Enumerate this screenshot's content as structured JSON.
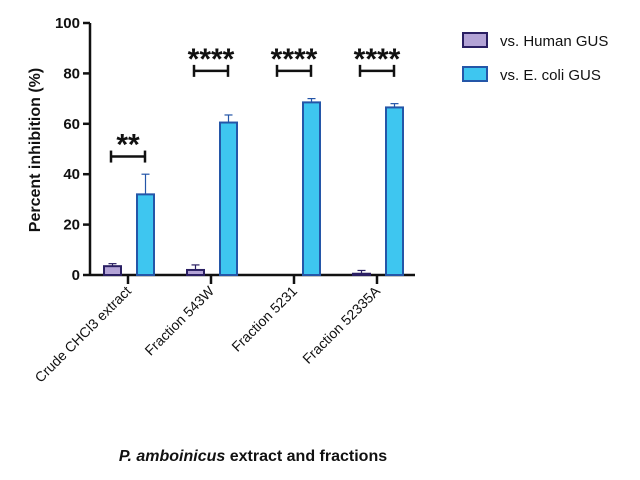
{
  "chart_data": {
    "type": "bar",
    "title": "",
    "xlabel_italic": "P. amboinicus",
    "xlabel_rest": " extract and fractions",
    "ylabel": "Percent inhibition (%)",
    "ylim": [
      0,
      100
    ],
    "yticks": [
      0,
      20,
      40,
      60,
      80,
      100
    ],
    "grid": false,
    "legend_position": "top-right",
    "categories": [
      "Crude CHCl3 extract",
      "Fraction 543W",
      "Fraction 5231",
      "Fraction 52335A"
    ],
    "series": [
      {
        "name": "vs. Human GUS",
        "values": [
          3.5,
          2,
          0,
          0.5
        ],
        "error_upper": [
          4.5,
          4,
          0,
          1.8
        ],
        "fill": "#b3a3d6",
        "stroke": "#2a1f63"
      },
      {
        "name": "vs. E. coli GUS",
        "values": [
          32,
          60.5,
          68.5,
          66.5
        ],
        "error_upper": [
          40,
          63.5,
          70,
          68
        ],
        "fill": "#3ec6f0",
        "stroke": "#2456a8"
      }
    ],
    "significance": [
      {
        "label": "**",
        "level": 47
      },
      {
        "label": "****",
        "level": 81
      },
      {
        "label": "****",
        "level": 81
      },
      {
        "label": "****",
        "level": 81
      }
    ]
  }
}
